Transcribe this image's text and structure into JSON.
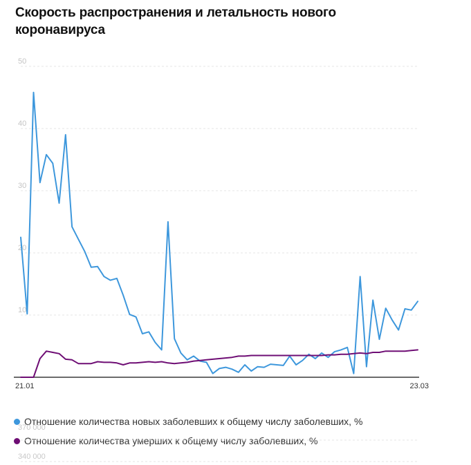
{
  "title": "Скорость распространения и летальность нового коронавируса",
  "ghost_labels": [
    "370 000",
    "340 000"
  ],
  "chart_data": {
    "type": "line",
    "title": "Скорость распространения и летальность нового коронавируса",
    "x_start_label": "21.01",
    "x_end_label": "23.03",
    "ylim": [
      0,
      50
    ],
    "yticks": [
      "50",
      "40",
      "30",
      "20",
      "10"
    ],
    "grid": true,
    "legend_position": "bottom-left",
    "series": [
      {
        "name": "Отношение количества новых заболевших к общему числу заболевших, %",
        "color": "#3d97dc",
        "values": [
          22.5,
          10.2,
          45.8,
          31.3,
          35.8,
          34.4,
          28.0,
          39.0,
          24.2,
          22.2,
          20.2,
          17.7,
          17.8,
          16.2,
          15.6,
          15.9,
          13.2,
          10.1,
          9.7,
          7.0,
          7.3,
          5.6,
          4.4,
          25.0,
          6.2,
          3.9,
          2.8,
          3.4,
          2.6,
          2.4,
          0.6,
          1.4,
          1.6,
          1.3,
          0.8,
          2.0,
          1.0,
          1.7,
          1.6,
          2.1,
          2.0,
          1.9,
          3.4,
          2.0,
          2.7,
          3.7,
          3.0,
          3.9,
          3.2,
          4.1,
          4.4,
          4.8,
          0.6,
          16.2,
          1.7,
          12.4,
          6.1,
          11.1,
          9.2,
          7.6,
          11.0,
          10.8,
          12.2
        ]
      },
      {
        "name": "Отношение количества умерших к общему числу заболевших, %",
        "color": "#6e0d74",
        "values": [
          0.0,
          0.0,
          0.0,
          3.0,
          4.2,
          4.0,
          3.8,
          2.9,
          2.8,
          2.2,
          2.2,
          2.2,
          2.5,
          2.4,
          2.4,
          2.3,
          2.0,
          2.3,
          2.3,
          2.4,
          2.5,
          2.4,
          2.5,
          2.3,
          2.2,
          2.3,
          2.4,
          2.6,
          2.7,
          2.8,
          2.9,
          3.0,
          3.1,
          3.2,
          3.4,
          3.4,
          3.5,
          3.5,
          3.5,
          3.5,
          3.5,
          3.5,
          3.5,
          3.5,
          3.5,
          3.5,
          3.5,
          3.5,
          3.6,
          3.6,
          3.7,
          3.7,
          3.8,
          3.9,
          3.8,
          4.0,
          4.0,
          4.2,
          4.2,
          4.2,
          4.2,
          4.3,
          4.4
        ]
      }
    ]
  }
}
